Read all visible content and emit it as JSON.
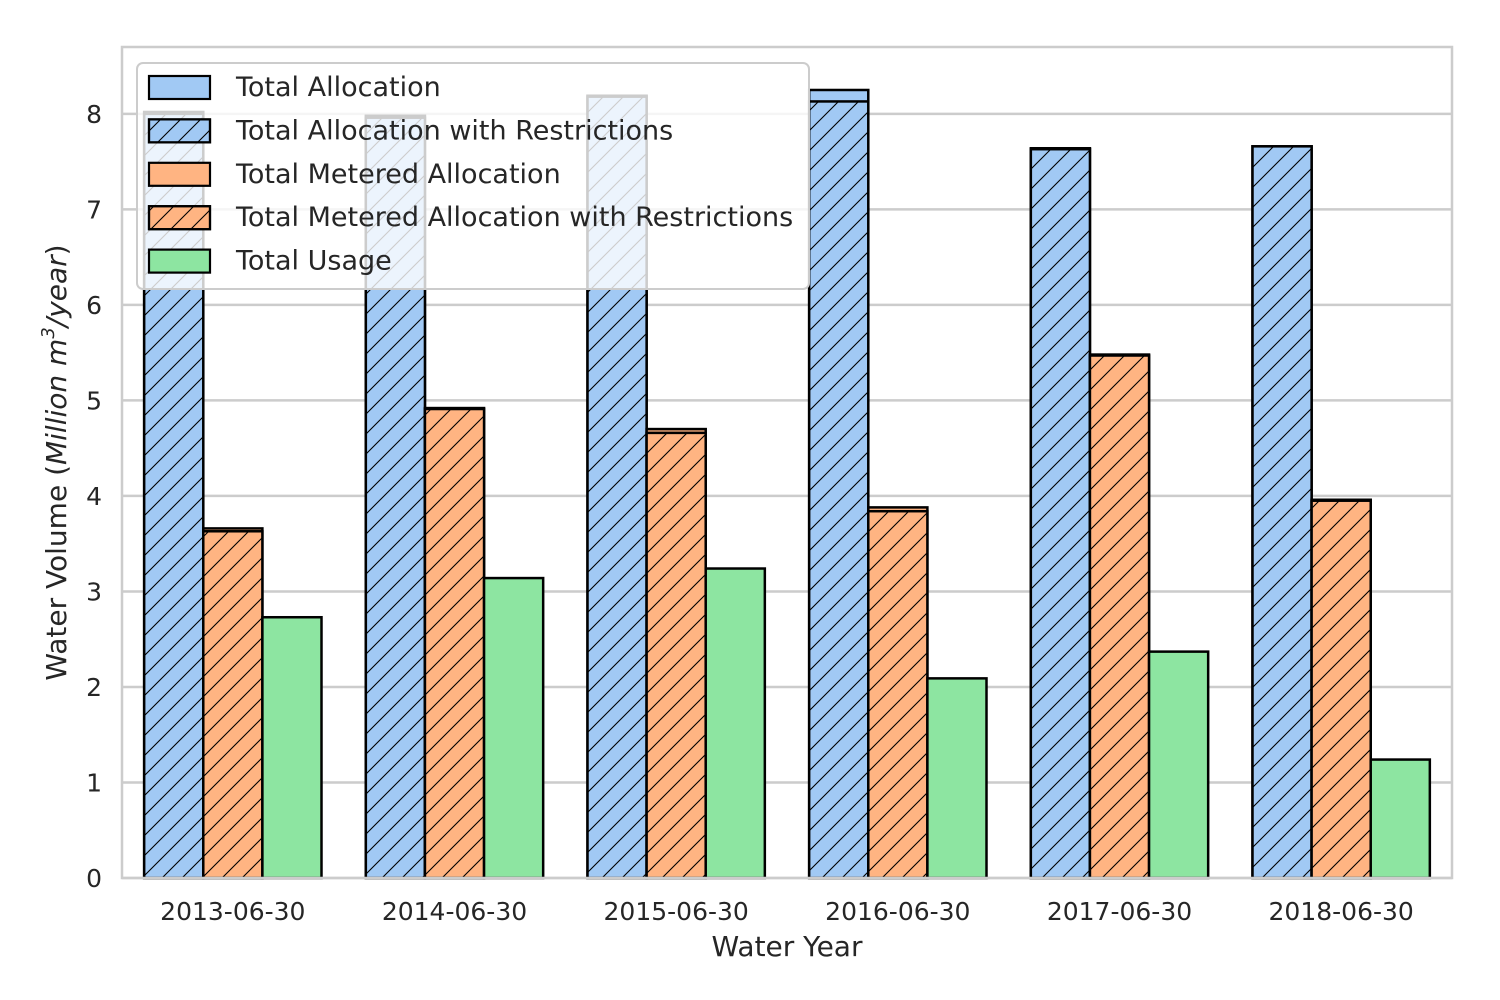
{
  "chart_data": {
    "type": "bar",
    "categories": [
      "2013-06-30",
      "2014-06-30",
      "2015-06-30",
      "2016-06-30",
      "2017-06-30",
      "2018-06-30"
    ],
    "groups": [
      {
        "color": "#a1c9f4",
        "solid": {
          "name": "Total Allocation",
          "values": [
            8.02,
            7.98,
            8.19,
            8.25,
            7.64,
            7.66
          ]
        },
        "hatched": {
          "name": "Total Allocation with Restrictions",
          "values": [
            8.0,
            7.96,
            8.18,
            8.13,
            7.63,
            7.66
          ]
        }
      },
      {
        "color": "#ffb482",
        "solid": {
          "name": "Total Metered Allocation",
          "values": [
            3.66,
            4.92,
            4.7,
            3.88,
            5.48,
            3.96
          ]
        },
        "hatched": {
          "name": "Total Metered Allocation with Restrictions",
          "values": [
            3.63,
            4.91,
            4.66,
            3.84,
            5.47,
            3.95
          ]
        }
      },
      {
        "color": "#8de5a1",
        "solid": {
          "name": "Total Usage",
          "values": [
            2.73,
            3.14,
            3.24,
            2.09,
            2.37,
            1.24
          ]
        },
        "hatched": null
      }
    ],
    "legend": [
      "Total Allocation",
      "Total Allocation with Restrictions",
      "Total Metered Allocation",
      "Total Metered Allocation with Restrictions",
      "Total Usage"
    ],
    "legend_location": "upper-left",
    "xlabel": "Water Year",
    "ylabel_parts": [
      "Water Volume (",
      "Million m",
      "3",
      "/year",
      ")"
    ],
    "ylim": [
      0,
      8.7
    ],
    "yticks": [
      0,
      1,
      2,
      3,
      4,
      5,
      6,
      7,
      8
    ],
    "grid": "horizontal",
    "gridColor": "#cccccc",
    "edgeColor": "#000000"
  }
}
